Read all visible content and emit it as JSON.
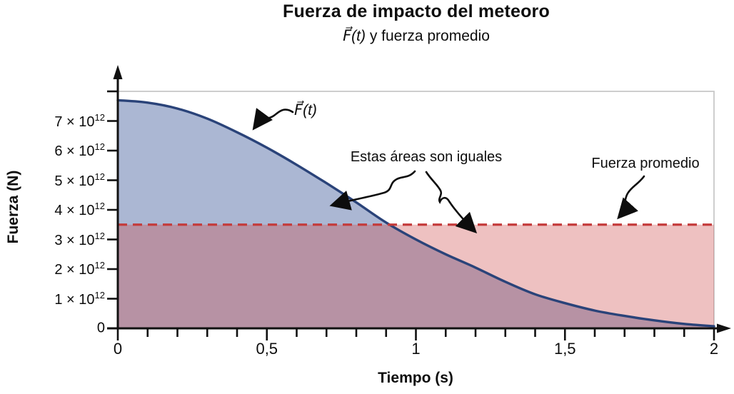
{
  "chart_data": {
    "type": "area",
    "title": "Fuerza de impacto del meteoro",
    "subtitle_math": "F⃗(t)",
    "subtitle_rest": " y fuerza promedio",
    "xlabel": "Tiempo (s)",
    "ylabel": "Fuerza (N)",
    "xlim": [
      0,
      2
    ],
    "ylim": [
      0,
      8000000000000.0
    ],
    "x_minor_step": 0.1,
    "x_ticks": [
      {
        "v": 0,
        "label": "0"
      },
      {
        "v": 0.5,
        "label": "0,5"
      },
      {
        "v": 1,
        "label": "1"
      },
      {
        "v": 1.5,
        "label": "1,5"
      },
      {
        "v": 2,
        "label": "2"
      }
    ],
    "y_ticks": [
      {
        "v": 0,
        "label": "0"
      },
      {
        "v": 1000000000000.0,
        "label": "1 × 10^12"
      },
      {
        "v": 2000000000000.0,
        "label": "2 × 10^12"
      },
      {
        "v": 3000000000000.0,
        "label": "3 × 10^12"
      },
      {
        "v": 4000000000000.0,
        "label": "4 × 10^12"
      },
      {
        "v": 5000000000000.0,
        "label": "5 × 10^12"
      },
      {
        "v": 6000000000000.0,
        "label": "6 × 10^12"
      },
      {
        "v": 7000000000000.0,
        "label": "7 × 10^12"
      },
      {
        "v": 8000000000000.0,
        "label": ""
      }
    ],
    "curve": {
      "name": "F(t)",
      "t": [
        0,
        0.1,
        0.2,
        0.3,
        0.4,
        0.5,
        0.6,
        0.7,
        0.8,
        0.9,
        1.0,
        1.1,
        1.2,
        1.3,
        1.4,
        1.5,
        1.6,
        1.7,
        1.8,
        1.9,
        2.0
      ],
      "F": [
        7700000000000.0,
        7620000000000.0,
        7420000000000.0,
        7080000000000.0,
        6620000000000.0,
        6100000000000.0,
        5520000000000.0,
        4900000000000.0,
        4250000000000.0,
        3570000000000.0,
        3000000000000.0,
        2500000000000.0,
        2050000000000.0,
        1570000000000.0,
        1150000000000.0,
        850000000000.0,
        600000000000.0,
        420000000000.0,
        270000000000.0,
        150000000000.0,
        70000000000.0
      ]
    },
    "average_force": 3500000000000.0,
    "annotations": {
      "curve_label": "F⃗(t)",
      "areas_equal": "Estas áreas son iguales",
      "average": "Fuerza promedio"
    },
    "legend": "none",
    "grid": "off",
    "colors": {
      "curve": "#2a4379",
      "average_line": "#c43b3b",
      "area_under_curve_fill": "rgba(45,75,145,0.40)",
      "area_under_average_fill": "rgba(206,77,77,0.35)",
      "plot_border": "#c8c8c8",
      "axis": "#111111"
    }
  }
}
